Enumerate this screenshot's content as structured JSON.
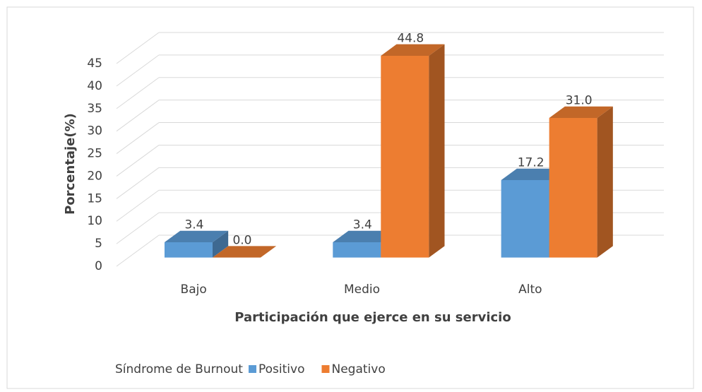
{
  "chart_data": {
    "type": "bar3d",
    "categories": [
      "Bajo",
      "Medio",
      "Alto"
    ],
    "series": [
      {
        "name": "Positivo",
        "color": "#5b9bd5",
        "values": [
          3.4,
          3.4,
          17.2
        ],
        "value_labels": [
          "3.4",
          "3.4",
          "17.2"
        ]
      },
      {
        "name": "Negativo",
        "color": "#ed7d31",
        "values": [
          0,
          44.8,
          31
        ],
        "value_labels": [
          "0.0",
          "44.8",
          "31.0"
        ]
      }
    ],
    "ylim": [
      0,
      45
    ],
    "yticks": [
      0,
      5,
      10,
      15,
      20,
      25,
      30,
      35,
      40,
      45
    ],
    "grid": true,
    "ylabel": "Porcentaje(%)",
    "xlabel": "Participación que ejerce en su servicio",
    "legend_title": "Síndrome de Burnout",
    "legend": "bottom"
  }
}
